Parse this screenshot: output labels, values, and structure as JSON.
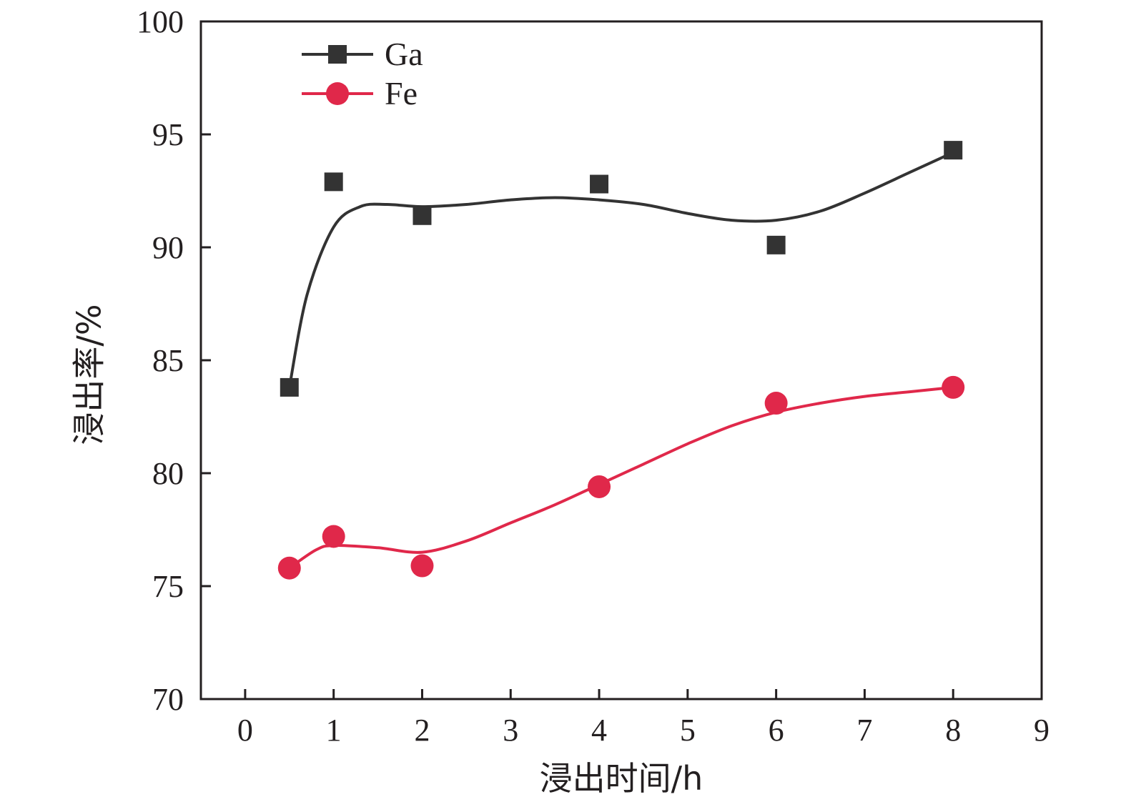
{
  "chart_data": {
    "type": "scatter",
    "xlabel": "浸出时间/h",
    "ylabel": "浸出率/%",
    "xlim": [
      -0.5,
      9
    ],
    "ylim": [
      70,
      100
    ],
    "xticks": [
      0,
      1,
      2,
      3,
      4,
      5,
      6,
      7,
      8,
      9
    ],
    "yticks": [
      70,
      75,
      80,
      85,
      90,
      95,
      100
    ],
    "grid": false,
    "legend_position": "top-left",
    "series": [
      {
        "name": "Ga",
        "marker": "square",
        "color": "#333333",
        "x": [
          0.5,
          1,
          2,
          4,
          6,
          8
        ],
        "y": [
          83.8,
          92.9,
          91.4,
          92.8,
          90.1,
          94.3
        ],
        "fit_curve": {
          "x": [
            0.5,
            0.7,
            1.0,
            1.3,
            1.6,
            2.0,
            2.5,
            3.0,
            3.5,
            4.0,
            4.5,
            5.0,
            5.5,
            6.0,
            6.5,
            7.0,
            7.5,
            8.0
          ],
          "y": [
            83.8,
            87.9,
            90.9,
            91.8,
            91.9,
            91.8,
            91.9,
            92.1,
            92.2,
            92.1,
            91.9,
            91.5,
            91.2,
            91.2,
            91.6,
            92.4,
            93.3,
            94.2
          ]
        }
      },
      {
        "name": "Fe",
        "marker": "circle",
        "color": "#e0284a",
        "x": [
          0.5,
          1,
          2,
          4,
          6,
          8
        ],
        "y": [
          75.8,
          77.2,
          75.9,
          79.4,
          83.1,
          83.8
        ],
        "fit_curve": {
          "x": [
            0.5,
            0.8,
            1.0,
            1.5,
            2.0,
            2.5,
            3.0,
            3.5,
            4.0,
            4.5,
            5.0,
            5.5,
            6.0,
            6.5,
            7.0,
            7.5,
            8.0
          ],
          "y": [
            75.8,
            76.6,
            76.8,
            76.7,
            76.5,
            77.0,
            77.8,
            78.6,
            79.5,
            80.4,
            81.3,
            82.1,
            82.7,
            83.1,
            83.4,
            83.6,
            83.8
          ]
        }
      }
    ]
  }
}
